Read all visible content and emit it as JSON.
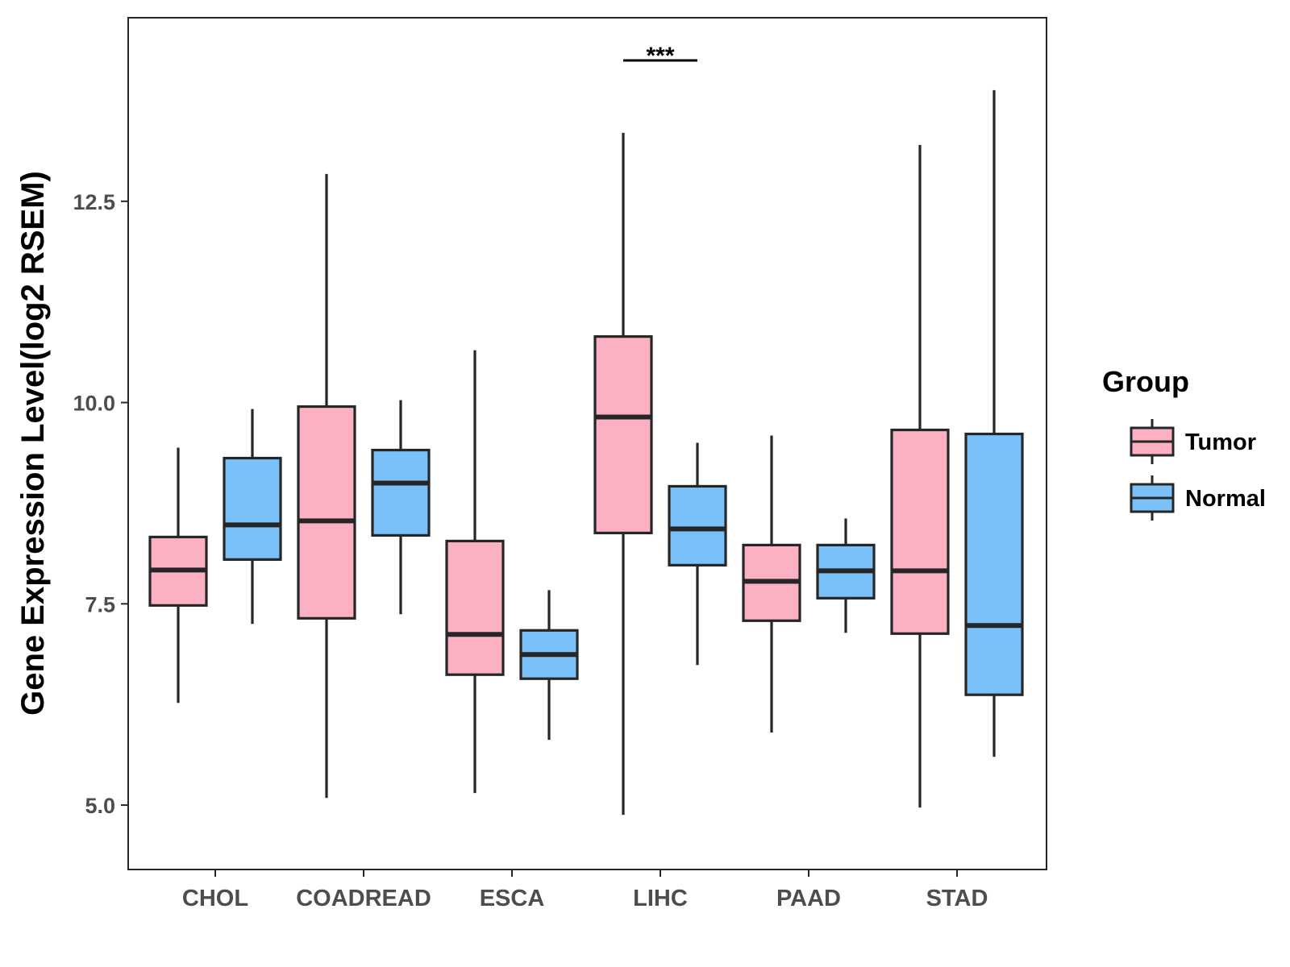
{
  "chart_data": {
    "type": "boxplot",
    "title": "",
    "xlabel": "",
    "ylabel": "Gene Expression Level(log2 RSEM)",
    "ylim": [
      4.2,
      14.78
    ],
    "yticks": [
      5.0,
      7.5,
      10.0,
      12.5
    ],
    "ytick_labels": [
      "5.0",
      "7.5",
      "10.0",
      "12.5"
    ],
    "grid": false,
    "categories": [
      "CHOL",
      "COADREAD",
      "ESCA",
      "LIHC",
      "PAAD",
      "STAD"
    ],
    "legend": {
      "title": "Group",
      "position": "right",
      "entries": [
        "Tumor",
        "Normal"
      ]
    },
    "colors": {
      "Tumor": "#fbb1c2",
      "Normal": "#79c1f8",
      "outline": "#262626"
    },
    "series": [
      {
        "name": "Tumor",
        "boxes": [
          {
            "whisker_low": 6.27,
            "q1": 7.48,
            "median": 7.92,
            "q3": 8.33,
            "whisker_high": 9.44
          },
          {
            "whisker_low": 5.09,
            "q1": 7.32,
            "median": 8.53,
            "q3": 9.95,
            "whisker_high": 12.84
          },
          {
            "whisker_low": 5.15,
            "q1": 6.62,
            "median": 7.12,
            "q3": 8.28,
            "whisker_high": 10.65
          },
          {
            "whisker_low": 4.88,
            "q1": 8.38,
            "median": 9.82,
            "q3": 10.82,
            "whisker_high": 13.35
          },
          {
            "whisker_low": 5.9,
            "q1": 7.29,
            "median": 7.78,
            "q3": 8.23,
            "whisker_high": 9.59
          },
          {
            "whisker_low": 4.97,
            "q1": 7.13,
            "median": 7.91,
            "q3": 9.66,
            "whisker_high": 13.2
          }
        ]
      },
      {
        "name": "Normal",
        "boxes": [
          {
            "whisker_low": 7.25,
            "q1": 8.05,
            "median": 8.48,
            "q3": 9.31,
            "whisker_high": 9.92
          },
          {
            "whisker_low": 7.37,
            "q1": 8.35,
            "median": 9.0,
            "q3": 9.41,
            "whisker_high": 10.03
          },
          {
            "whisker_low": 5.81,
            "q1": 6.57,
            "median": 6.87,
            "q3": 7.17,
            "whisker_high": 7.67
          },
          {
            "whisker_low": 6.74,
            "q1": 7.98,
            "median": 8.43,
            "q3": 8.96,
            "whisker_high": 9.5
          },
          {
            "whisker_low": 7.14,
            "q1": 7.57,
            "median": 7.91,
            "q3": 8.23,
            "whisker_high": 8.56
          },
          {
            "whisker_low": 5.6,
            "q1": 6.37,
            "median": 7.23,
            "q3": 9.61,
            "whisker_high": 13.88
          }
        ]
      }
    ],
    "annotations": [
      {
        "category": "LIHC",
        "text": "***"
      }
    ]
  }
}
